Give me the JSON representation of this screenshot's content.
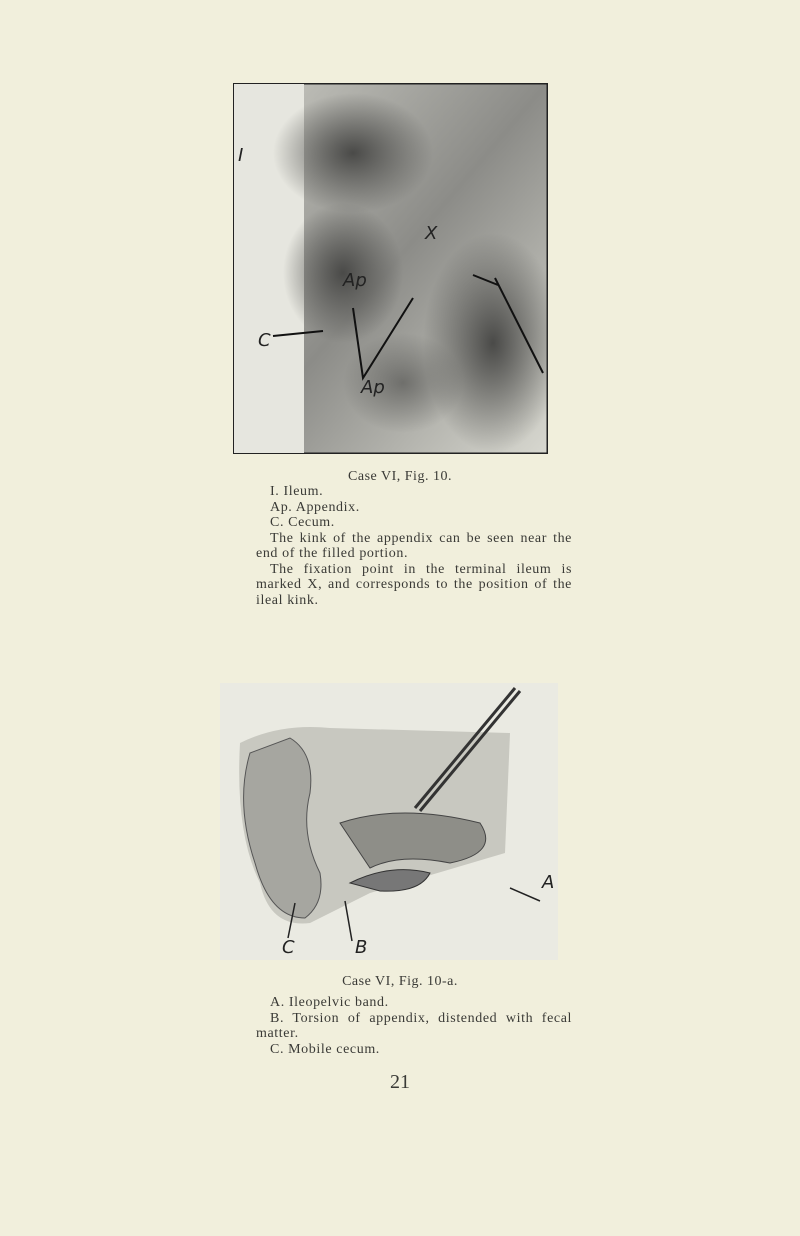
{
  "figures": [
    {
      "image_labels": [
        "I",
        "Ap",
        "C",
        "X",
        "Ap"
      ],
      "caption": "Case VI, Fig. 10.",
      "legend": [
        "I. Ileum.",
        "Ap. Appendix.",
        "C. Cecum.",
        "The kink of the appendix can be seen near the end of the filled portion.",
        "The fixation point in the terminal ileum is marked X, and corresponds to the position of the ileal kink."
      ]
    },
    {
      "image_labels": [
        "A",
        "C",
        "B"
      ],
      "caption": "Case VI, Fig. 10-a.",
      "legend": [
        "A. Ileopelvic band.",
        "B. Torsion of appendix, distended with fecal matter.",
        "C. Mobile cecum."
      ]
    }
  ],
  "page_number": "21"
}
